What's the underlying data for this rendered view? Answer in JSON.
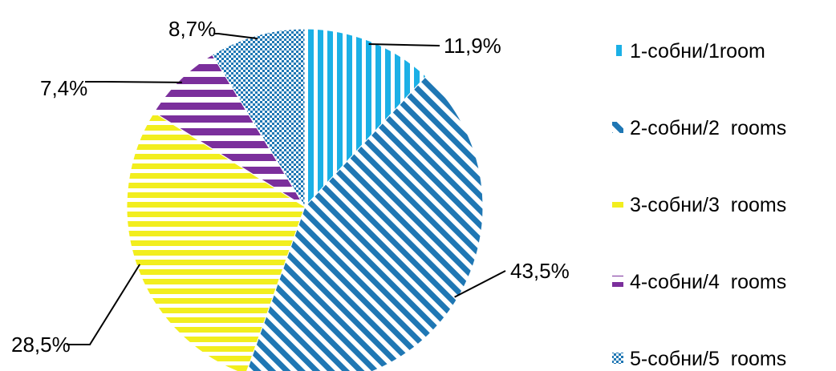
{
  "chart_data": {
    "type": "pie",
    "title": "",
    "slices": [
      {
        "label": "1-собни/1room",
        "value": 11.9,
        "data_label": "11,9%",
        "color": "#1bb0e6",
        "pattern": "vertical-stripes"
      },
      {
        "label": "2-собни/2  rooms",
        "value": 43.5,
        "data_label": "43,5%",
        "color": "#1f77b4",
        "pattern": "diagonal-stripes"
      },
      {
        "label": "3-собни/3  rooms",
        "value": 28.5,
        "data_label": "28,5%",
        "color": "#f2ee1e",
        "pattern": "horizontal-stripes"
      },
      {
        "label": "4-собни/4  rooms",
        "value": 7.4,
        "data_label": "7,4%",
        "color": "#7b2f9c",
        "pattern": "horizontal-stripes-wide"
      },
      {
        "label": "5-собни/5  rooms",
        "value": 8.7,
        "data_label": "8,7%",
        "color": "#1f77b4",
        "pattern": "checker"
      }
    ],
    "start_angle": "12 o'clock",
    "direction": "clockwise",
    "legend_position": "right"
  }
}
